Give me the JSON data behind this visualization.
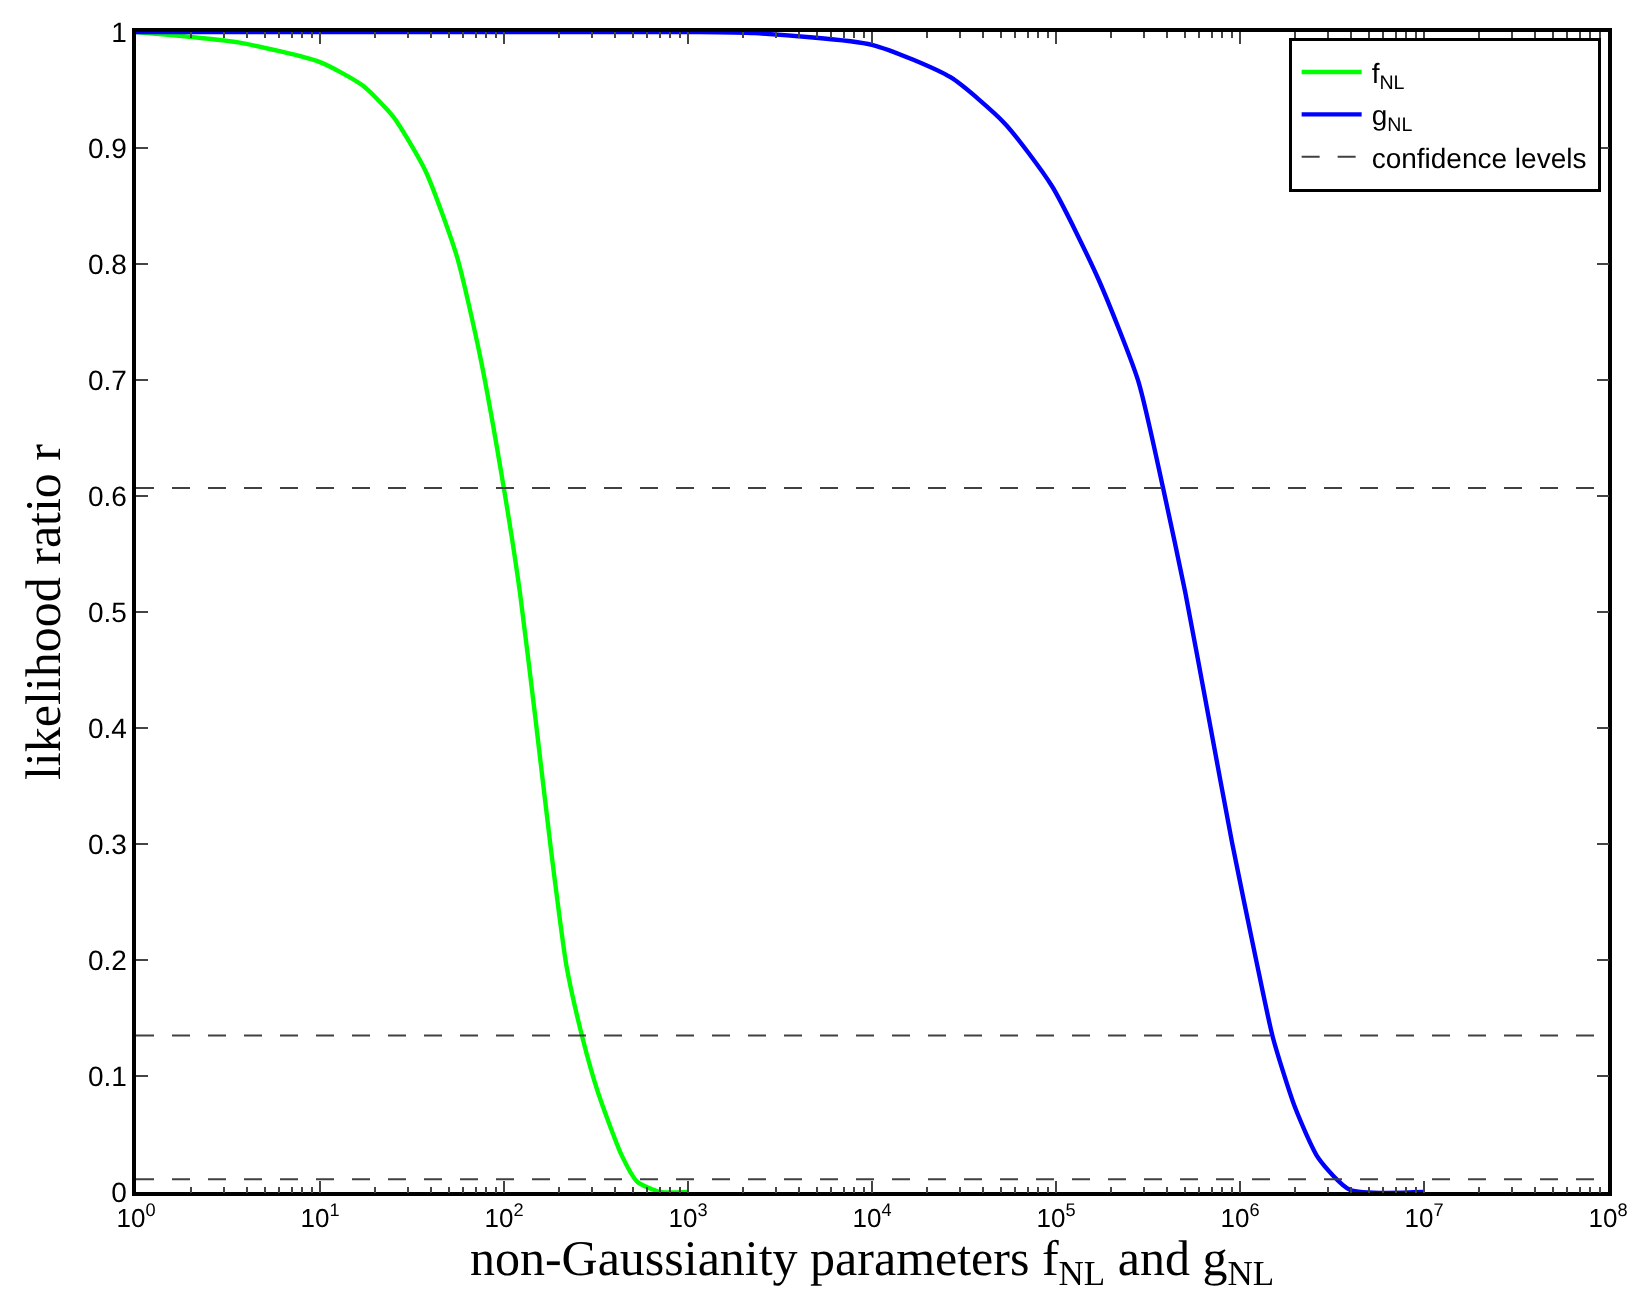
{
  "chart_data": {
    "type": "line",
    "xlabel": "non-Gaussianity parameters f$_{NL}$ and g$_{NL}$",
    "ylabel": "likelihood ratio r",
    "log": "x",
    "xlim": [
      1,
      100000000
    ],
    "xticks": [
      {
        "value": 1,
        "label": "10$^{0}$"
      },
      {
        "value": 10,
        "label": "10$^{1}$"
      },
      {
        "value": 100,
        "label": "10$^{2}$"
      },
      {
        "value": 1000,
        "label": "10$^{3}$"
      },
      {
        "value": 10000,
        "label": "10$^{4}$"
      },
      {
        "value": 100000,
        "label": "10$^{5}$"
      },
      {
        "value": 1000000,
        "label": "10$^{6}$"
      },
      {
        "value": 10000000,
        "label": "10$^{7}$"
      },
      {
        "value": 100000000,
        "label": "10$^{8}$"
      }
    ],
    "ylim": [
      0,
      1
    ],
    "yticks": [
      0,
      0.1,
      0.2,
      0.3,
      0.4,
      0.5,
      0.6,
      0.7,
      0.8,
      0.9,
      1
    ],
    "legend": "top right",
    "marker": "none",
    "line_style": "solid",
    "series": [
      {
        "name": "f$_{NL}$",
        "color": "#00ff00",
        "x": [
          1,
          3.6,
          10,
          17,
          25,
          37.5,
          55.6,
          74.5,
          100,
          122,
          148,
          180,
          219,
          267,
          324,
          435,
          529,
          710,
          1000
        ],
        "values": [
          1.0,
          0.991,
          0.974,
          0.954,
          0.927,
          0.88,
          0.806,
          0.719,
          0.606,
          0.517,
          0.409,
          0.295,
          0.194,
          0.133,
          0.086,
          0.032,
          0.009,
          0.0,
          0.0
        ]
      },
      {
        "name": "g$_{NL}$",
        "color": "#0000ff",
        "x": [
          1,
          1000,
          2300,
          10000,
          26700,
          52800,
          95200,
          171000,
          280000,
          383000,
          504000,
          676000,
          906000,
          1220000,
          1510000,
          1990000,
          2670000,
          3950000,
          10000000
        ],
        "values": [
          1.0,
          1.0,
          0.999,
          0.989,
          0.961,
          0.921,
          0.867,
          0.786,
          0.699,
          0.606,
          0.517,
          0.409,
          0.301,
          0.201,
          0.133,
          0.073,
          0.029,
          0.002,
          0.0
        ]
      }
    ],
    "ref_lines": [
      {
        "axis": "y",
        "value": 0.607,
        "label": "confidence levels",
        "color": "#404040",
        "line_style": "dashed"
      },
      {
        "axis": "y",
        "value": 0.135,
        "label": null,
        "color": "#404040",
        "line_style": "dashed"
      },
      {
        "axis": "y",
        "value": 0.011,
        "label": null,
        "color": "#404040",
        "line_style": "dashed"
      }
    ]
  }
}
